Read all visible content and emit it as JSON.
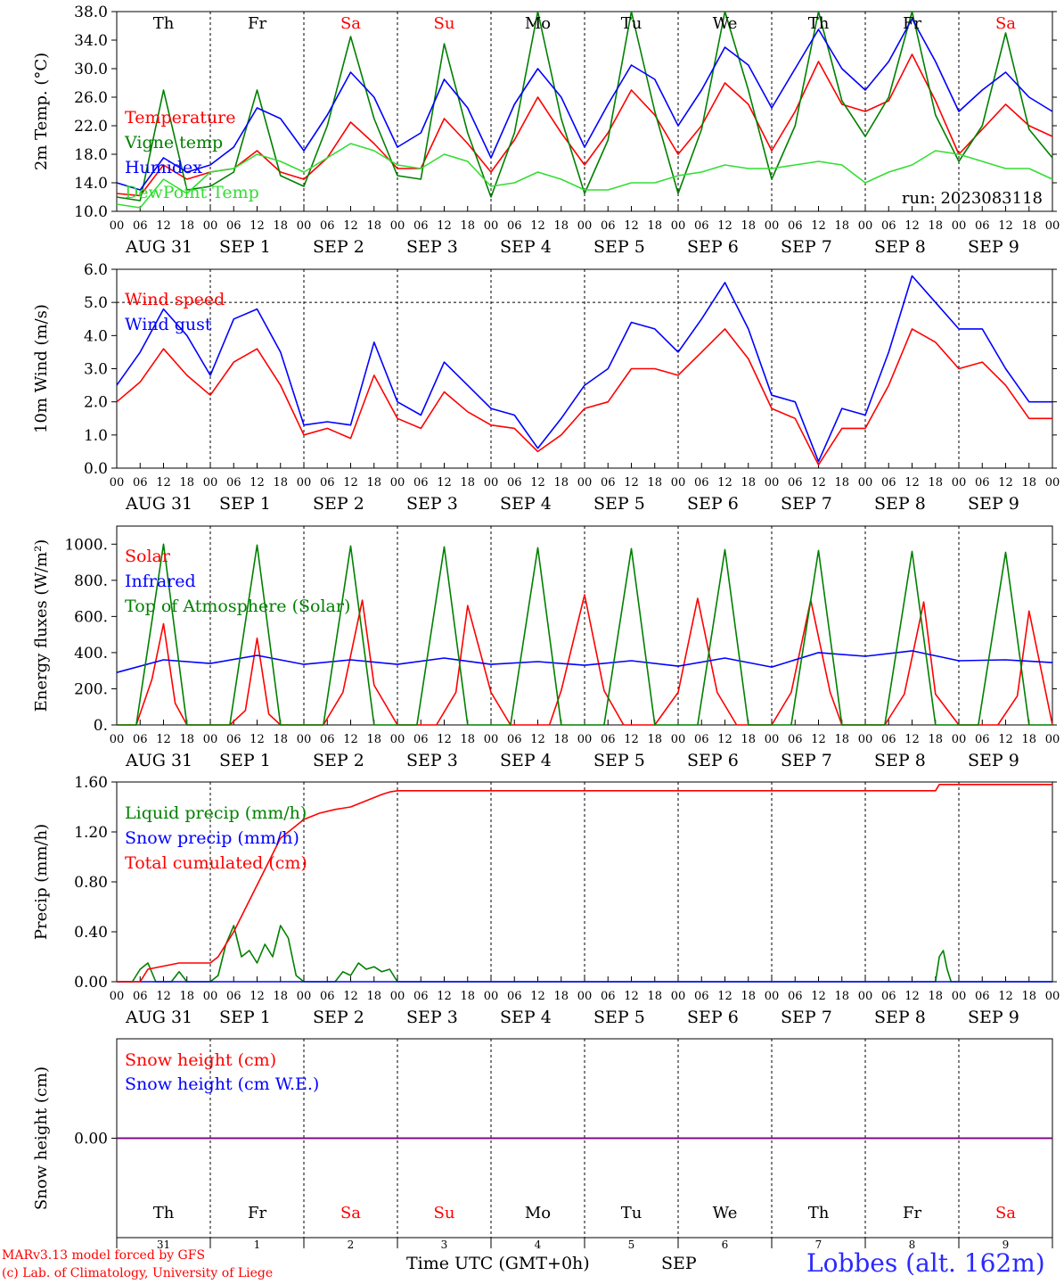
{
  "footer": {
    "model_line": "MARv3.13 model forced by GFS",
    "lab_line": "(c) Lab. of Climatology, University of Liege",
    "time_label": "Time UTC (GMT+0h)",
    "month_label": "SEP",
    "station": "Lobbes (alt. 162m)"
  },
  "colors": {
    "red": "#ff0000",
    "green": "#008000",
    "blue": "#0000ff",
    "lime": "#33dd33",
    "sunday": "#ff0000",
    "weekday": "#000000",
    "purple": "#800080"
  },
  "chart_data": [
    {
      "type": "line",
      "ylabel": "2m Temp. (°C)",
      "ylim": [
        10,
        38
      ],
      "yticks": [
        "10.0",
        "14.0",
        "18.0",
        "22.0",
        "26.0",
        "30.0",
        "34.0",
        "38.0"
      ],
      "hline": null,
      "weekday_labels": [
        "Th",
        "Fr",
        "Sa",
        "Su",
        "Mo",
        "Tu",
        "We",
        "Th",
        "Fr",
        "Sa"
      ],
      "run_label": "run: 2023083118",
      "series": [
        {
          "name": "Temperature",
          "color": "red",
          "x": [
            0,
            6,
            12,
            18,
            24,
            30,
            36,
            42,
            48,
            54,
            60,
            66,
            72,
            78,
            84,
            90,
            96,
            102,
            108,
            114,
            120,
            126,
            132,
            138,
            144,
            150,
            156,
            162,
            168,
            174,
            180,
            186,
            192,
            198,
            204,
            210,
            216,
            222,
            228,
            234,
            240
          ],
          "values": [
            12.5,
            12.2,
            16.5,
            14.5,
            15.5,
            16.0,
            18.5,
            15.5,
            14.5,
            17.5,
            22.5,
            19.5,
            16.0,
            16.0,
            23.0,
            19.5,
            15.5,
            20.0,
            26.0,
            21.0,
            16.5,
            21.0,
            27.0,
            23.5,
            18.0,
            22.0,
            28.0,
            25.0,
            18.5,
            24.0,
            31.0,
            25.0,
            24.0,
            25.5,
            32.0,
            25.5,
            18.0,
            21.5,
            25.0,
            22.0,
            20.5
          ]
        },
        {
          "name": "Vigne temp",
          "color": "green",
          "x": [
            0,
            6,
            12,
            18,
            24,
            30,
            36,
            42,
            48,
            54,
            60,
            66,
            72,
            78,
            84,
            90,
            96,
            102,
            108,
            114,
            120,
            126,
            132,
            138,
            144,
            150,
            156,
            162,
            168,
            174,
            180,
            186,
            192,
            198,
            204,
            210,
            216,
            222,
            228,
            234,
            240
          ],
          "values": [
            12.0,
            11.5,
            27.0,
            13.0,
            13.5,
            15.5,
            27.0,
            15.0,
            13.5,
            22.0,
            34.5,
            23.0,
            15.0,
            14.5,
            33.5,
            21.0,
            12.0,
            21.0,
            38.0,
            23.0,
            12.5,
            20.0,
            38.0,
            24.0,
            12.5,
            21.5,
            38.0,
            27.0,
            14.5,
            22.0,
            38.0,
            25.5,
            20.5,
            26.0,
            38.0,
            23.5,
            17.0,
            22.0,
            35.0,
            21.5,
            17.5
          ]
        },
        {
          "name": "Humidex",
          "color": "blue",
          "x": [
            0,
            6,
            12,
            18,
            24,
            30,
            36,
            42,
            48,
            54,
            60,
            66,
            72,
            78,
            84,
            90,
            96,
            102,
            108,
            114,
            120,
            126,
            132,
            138,
            144,
            150,
            156,
            162,
            168,
            174,
            180,
            186,
            192,
            198,
            204,
            210,
            216,
            222,
            228,
            234,
            240
          ],
          "values": [
            14.0,
            13.0,
            17.5,
            15.5,
            16.5,
            19.0,
            24.5,
            23.0,
            18.5,
            23.5,
            29.5,
            26.0,
            19.0,
            21.0,
            28.5,
            24.5,
            17.5,
            25.0,
            30.0,
            26.0,
            19.0,
            25.0,
            30.5,
            28.5,
            22.0,
            27.0,
            33.0,
            30.5,
            24.5,
            30.0,
            35.5,
            30.0,
            27.0,
            31.0,
            37.0,
            31.0,
            24.0,
            27.0,
            29.5,
            26.0,
            24.0
          ]
        },
        {
          "name": "DewPoint Temp",
          "color": "lime",
          "x": [
            0,
            6,
            12,
            18,
            24,
            30,
            36,
            42,
            48,
            54,
            60,
            66,
            72,
            78,
            84,
            90,
            96,
            102,
            108,
            114,
            120,
            126,
            132,
            138,
            144,
            150,
            156,
            162,
            168,
            174,
            180,
            186,
            192,
            198,
            204,
            210,
            216,
            222,
            228,
            234,
            240
          ],
          "values": [
            11.0,
            10.5,
            14.5,
            12.5,
            15.5,
            16.0,
            18.0,
            17.0,
            15.5,
            17.5,
            19.5,
            18.5,
            16.5,
            16.0,
            18.0,
            17.0,
            13.5,
            14.0,
            15.5,
            14.5,
            13.0,
            13.0,
            14.0,
            14.0,
            15.0,
            15.5,
            16.5,
            16.0,
            16.0,
            16.5,
            17.0,
            16.5,
            14.0,
            15.5,
            16.5,
            18.5,
            18.0,
            17.0,
            16.0,
            16.0,
            14.5
          ]
        }
      ]
    },
    {
      "type": "line",
      "ylabel": "10m Wind (m/s)",
      "ylim": [
        0,
        6
      ],
      "yticks": [
        "0.0",
        "1.0",
        "2.0",
        "3.0",
        "4.0",
        "5.0",
        "6.0"
      ],
      "hline": 5.0,
      "series": [
        {
          "name": "Wind speed",
          "color": "red",
          "x": [
            0,
            6,
            12,
            18,
            24,
            30,
            36,
            42,
            48,
            54,
            60,
            66,
            72,
            78,
            84,
            90,
            96,
            102,
            108,
            114,
            120,
            126,
            132,
            138,
            144,
            150,
            156,
            162,
            168,
            174,
            180,
            186,
            192,
            198,
            204,
            210,
            216,
            222,
            228,
            234,
            240
          ],
          "values": [
            2.0,
            2.6,
            3.6,
            2.8,
            2.2,
            3.2,
            3.6,
            2.5,
            1.0,
            1.2,
            0.9,
            2.8,
            1.5,
            1.2,
            2.3,
            1.7,
            1.3,
            1.2,
            0.5,
            1.0,
            1.8,
            2.0,
            3.0,
            3.0,
            2.8,
            3.5,
            4.2,
            3.3,
            1.8,
            1.5,
            0.1,
            1.2,
            1.2,
            2.5,
            4.2,
            3.8,
            3.0,
            3.2,
            2.5,
            1.5,
            1.5
          ]
        },
        {
          "name": "Wind gust",
          "color": "blue",
          "x": [
            0,
            6,
            12,
            18,
            24,
            30,
            36,
            42,
            48,
            54,
            60,
            66,
            72,
            78,
            84,
            90,
            96,
            102,
            108,
            114,
            120,
            126,
            132,
            138,
            144,
            150,
            156,
            162,
            168,
            174,
            180,
            186,
            192,
            198,
            204,
            210,
            216,
            222,
            228,
            234,
            240
          ],
          "values": [
            2.5,
            3.5,
            4.8,
            4.0,
            2.8,
            4.5,
            4.8,
            3.5,
            1.3,
            1.4,
            1.3,
            3.8,
            2.0,
            1.6,
            3.2,
            2.5,
            1.8,
            1.6,
            0.6,
            1.5,
            2.5,
            3.0,
            4.4,
            4.2,
            3.5,
            4.5,
            5.6,
            4.2,
            2.2,
            2.0,
            0.2,
            1.8,
            1.6,
            3.5,
            5.8,
            5.0,
            4.2,
            4.2,
            3.0,
            2.0,
            2.0
          ]
        }
      ]
    },
    {
      "type": "line",
      "ylabel": "Energy fluxes (W/m²)",
      "ylim": [
        0,
        1100
      ],
      "yticks": [
        "0.",
        "200.",
        "400.",
        "600.",
        "800.",
        "1000."
      ],
      "hline": null,
      "series": [
        {
          "name": "Solar",
          "color": "red",
          "x": [
            0,
            5,
            9,
            12,
            15,
            18,
            24,
            29,
            33,
            36,
            39,
            42,
            48,
            53,
            58,
            63,
            66,
            72,
            77,
            82,
            87,
            90,
            96,
            101,
            106,
            111,
            114,
            120,
            125,
            130,
            135,
            138,
            144,
            149,
            154,
            159,
            162,
            168,
            173,
            178,
            183,
            186,
            192,
            197,
            202,
            207,
            210,
            216,
            221,
            226,
            231,
            234,
            240
          ],
          "values": [
            0,
            0,
            250,
            560,
            120,
            0,
            0,
            0,
            80,
            480,
            60,
            0,
            0,
            0,
            180,
            690,
            220,
            0,
            0,
            0,
            180,
            660,
            180,
            0,
            0,
            0,
            190,
            720,
            190,
            0,
            0,
            0,
            180,
            700,
            180,
            0,
            0,
            0,
            180,
            690,
            180,
            0,
            0,
            0,
            170,
            680,
            170,
            0,
            0,
            0,
            160,
            630,
            0
          ]
        },
        {
          "name": "Infrared",
          "color": "blue",
          "x": [
            0,
            12,
            24,
            36,
            48,
            60,
            72,
            84,
            96,
            108,
            120,
            132,
            144,
            156,
            168,
            180,
            192,
            204,
            216,
            228,
            240
          ],
          "values": [
            290,
            360,
            340,
            385,
            335,
            360,
            335,
            370,
            335,
            350,
            330,
            355,
            325,
            370,
            320,
            400,
            380,
            410,
            355,
            360,
            345
          ]
        },
        {
          "name": "Top of Atmosphere (Solar)",
          "color": "green",
          "x": [
            0,
            5,
            12,
            18,
            24,
            29,
            36,
            42,
            48,
            53,
            60,
            66,
            72,
            77,
            84,
            90,
            96,
            101,
            108,
            114,
            120,
            125,
            132,
            138,
            144,
            149,
            156,
            162,
            168,
            173,
            180,
            186,
            192,
            197,
            204,
            210,
            216,
            221,
            228,
            234,
            240
          ],
          "values": [
            0,
            0,
            1000,
            0,
            0,
            0,
            995,
            0,
            0,
            0,
            990,
            0,
            0,
            0,
            985,
            0,
            0,
            0,
            980,
            0,
            0,
            0,
            975,
            0,
            0,
            0,
            970,
            0,
            0,
            0,
            965,
            0,
            0,
            0,
            960,
            0,
            0,
            0,
            955,
            0,
            0
          ]
        }
      ]
    },
    {
      "type": "line",
      "ylabel": "Precip (mm/h)",
      "ylim": [
        0,
        1.6
      ],
      "yticks": [
        "0.00",
        "0.40",
        "0.80",
        "1.20",
        "1.60"
      ],
      "hline": null,
      "series": [
        {
          "name": "Liquid precip (mm/h)",
          "color": "green",
          "x": [
            0,
            4,
            6,
            8,
            10,
            14,
            16,
            18,
            24,
            26,
            28,
            30,
            32,
            34,
            36,
            38,
            40,
            42,
            44,
            46,
            48,
            56,
            58,
            60,
            62,
            64,
            66,
            68,
            70,
            72,
            210,
            211,
            212,
            213,
            214,
            240
          ],
          "values": [
            0,
            0,
            0.1,
            0.15,
            0,
            0,
            0.08,
            0,
            0,
            0.05,
            0.3,
            0.45,
            0.2,
            0.25,
            0.15,
            0.3,
            0.2,
            0.45,
            0.35,
            0.05,
            0,
            0,
            0.08,
            0.05,
            0.15,
            0.1,
            0.12,
            0.08,
            0.1,
            0,
            0,
            0.2,
            0.25,
            0.1,
            0,
            0
          ]
        },
        {
          "name": "Snow precip (mm/h)",
          "color": "blue",
          "x": [
            0,
            240
          ],
          "values": [
            0,
            0
          ]
        },
        {
          "name": "Total cumulated (cm)",
          "color": "red",
          "x": [
            0,
            6,
            8,
            16,
            24,
            26,
            30,
            34,
            38,
            42,
            46,
            48,
            52,
            56,
            60,
            64,
            68,
            70,
            72,
            76,
            210,
            211,
            240
          ],
          "values": [
            0,
            0,
            0.1,
            0.15,
            0.15,
            0.2,
            0.4,
            0.65,
            0.9,
            1.15,
            1.25,
            1.3,
            1.35,
            1.38,
            1.4,
            1.45,
            1.5,
            1.52,
            1.53,
            1.53,
            1.53,
            1.58,
            1.58
          ]
        }
      ]
    },
    {
      "type": "line",
      "ylabel": "Snow height (cm)",
      "ylim": [
        -1,
        1
      ],
      "yticks": [
        "0.00"
      ],
      "hline": null,
      "series": [
        {
          "name": "Snow height (cm)",
          "color": "red",
          "x": [
            0,
            240
          ],
          "values": [
            0,
            0
          ]
        },
        {
          "name": "Snow height (cm W.E.)",
          "color": "blue",
          "x": [
            0,
            240
          ],
          "values": [
            0,
            0
          ]
        }
      ]
    }
  ],
  "time_axis": {
    "hour_labels": [
      "00",
      "06",
      "12",
      "18"
    ],
    "date_labels": [
      "AUG 31",
      "SEP  1",
      "SEP  2",
      "SEP  3",
      "SEP  4",
      "SEP  5",
      "SEP  6",
      "SEP  7",
      "SEP  8",
      "SEP  9"
    ],
    "day_numbers": [
      "31",
      "1",
      "2",
      "3",
      "4",
      "5",
      "6",
      "7",
      "8",
      "9"
    ]
  }
}
